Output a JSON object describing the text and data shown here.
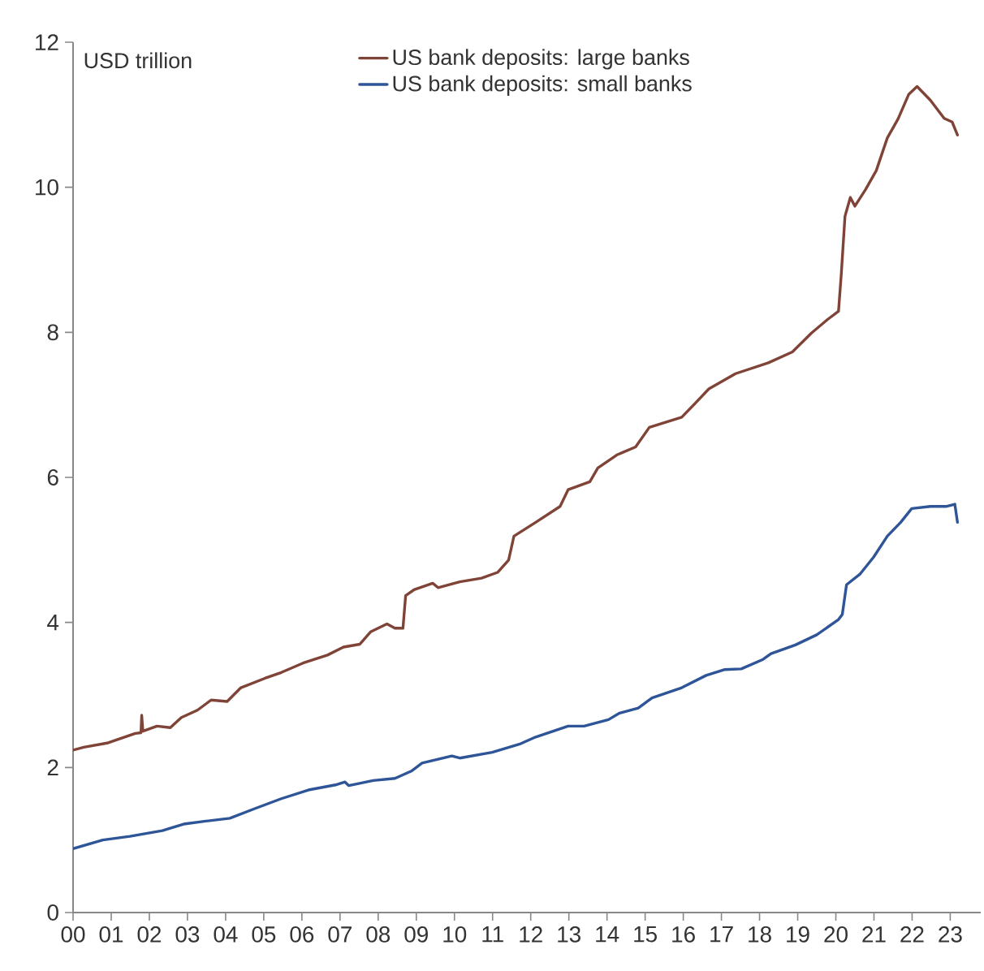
{
  "chart_data": {
    "type": "line",
    "ylabel": "USD trillion",
    "legend": "top",
    "xlim": [
      2000,
      2023.8
    ],
    "ylim": [
      0,
      12
    ],
    "xticks": [
      {
        "value": 2000,
        "label": "00"
      },
      {
        "value": 2001,
        "label": "01"
      },
      {
        "value": 2002,
        "label": "02"
      },
      {
        "value": 2003,
        "label": "03"
      },
      {
        "value": 2004,
        "label": "04"
      },
      {
        "value": 2005,
        "label": "05"
      },
      {
        "value": 2006,
        "label": "06"
      },
      {
        "value": 2007,
        "label": "07"
      },
      {
        "value": 2008,
        "label": "08"
      },
      {
        "value": 2009,
        "label": "09"
      },
      {
        "value": 2010,
        "label": "10"
      },
      {
        "value": 2011,
        "label": "11"
      },
      {
        "value": 2012,
        "label": "12"
      },
      {
        "value": 2013,
        "label": "13"
      },
      {
        "value": 2014,
        "label": "14"
      },
      {
        "value": 2015,
        "label": "15"
      },
      {
        "value": 2016,
        "label": "16"
      },
      {
        "value": 2017,
        "label": "17"
      },
      {
        "value": 2018,
        "label": "18"
      },
      {
        "value": 2019,
        "label": "19"
      },
      {
        "value": 2020,
        "label": "20"
      },
      {
        "value": 2021,
        "label": "21"
      },
      {
        "value": 2022,
        "label": "22"
      },
      {
        "value": 2023,
        "label": "23"
      }
    ],
    "yticks": [
      0,
      2,
      4,
      6,
      8,
      10,
      12
    ],
    "series": [
      {
        "name": "US bank deposits: large banks",
        "color": "#7f4437",
        "x": [
          2000,
          2000.28,
          2000.92,
          2001.63,
          2001.78,
          2001.8,
          2001.83,
          2002.2,
          2002.55,
          2002.84,
          2003.26,
          2003.62,
          2004.04,
          2004.4,
          2005.03,
          2005.46,
          2006.03,
          2006.67,
          2007.09,
          2007.52,
          2007.8,
          2008.23,
          2008.44,
          2008.65,
          2008.72,
          2008.94,
          2009.43,
          2009.57,
          2010.14,
          2010.71,
          2011.13,
          2011.42,
          2011.56,
          2012.13,
          2012.77,
          2012.98,
          2013.55,
          2013.76,
          2014.26,
          2014.75,
          2015.11,
          2015.96,
          2016.31,
          2016.67,
          2017.37,
          2018.23,
          2018.86,
          2019.36,
          2019.79,
          2020.07,
          2020.14,
          2020.24,
          2020.38,
          2020.5,
          2020.78,
          2021.06,
          2021.35,
          2021.63,
          2021.91,
          2022.13,
          2022.48,
          2022.84,
          2023.05,
          2023.19
        ],
        "values": [
          2.24,
          2.28,
          2.34,
          2.47,
          2.48,
          2.72,
          2.5,
          2.57,
          2.55,
          2.69,
          2.79,
          2.93,
          2.91,
          3.1,
          3.23,
          3.31,
          3.44,
          3.55,
          3.66,
          3.7,
          3.87,
          3.98,
          3.92,
          3.92,
          4.37,
          4.45,
          4.54,
          4.48,
          4.56,
          4.61,
          4.69,
          4.86,
          5.19,
          5.38,
          5.6,
          5.83,
          5.94,
          6.13,
          6.31,
          6.42,
          6.69,
          6.83,
          7.02,
          7.22,
          7.43,
          7.58,
          7.73,
          7.99,
          8.18,
          8.29,
          8.78,
          9.6,
          9.86,
          9.74,
          9.97,
          10.23,
          10.68,
          10.94,
          11.28,
          11.39,
          11.2,
          10.95,
          10.9,
          10.72
        ]
      },
      {
        "name": "US bank deposits: small banks",
        "color": "#2e5597",
        "x": [
          2000,
          2000.78,
          2001.49,
          2002.34,
          2002.9,
          2003.48,
          2004.11,
          2004.75,
          2005.46,
          2006.17,
          2006.88,
          2007.13,
          2007.23,
          2007.87,
          2008.44,
          2008.87,
          2009.15,
          2009.93,
          2010.14,
          2010.99,
          2011.7,
          2012.13,
          2012.98,
          2013.4,
          2014.04,
          2014.33,
          2014.82,
          2015.18,
          2015.96,
          2016.6,
          2017.09,
          2017.52,
          2018.09,
          2018.3,
          2018.94,
          2019.5,
          2020.07,
          2020.17,
          2020.28,
          2020.64,
          2020.99,
          2021.35,
          2021.7,
          2021.99,
          2022.48,
          2022.91,
          2023.12,
          2023.19
        ],
        "values": [
          0.88,
          1.0,
          1.05,
          1.13,
          1.22,
          1.26,
          1.3,
          1.43,
          1.57,
          1.69,
          1.76,
          1.8,
          1.75,
          1.82,
          1.85,
          1.95,
          2.06,
          2.16,
          2.13,
          2.21,
          2.32,
          2.42,
          2.57,
          2.57,
          2.66,
          2.75,
          2.82,
          2.96,
          3.1,
          3.27,
          3.35,
          3.36,
          3.49,
          3.57,
          3.69,
          3.83,
          4.04,
          4.11,
          4.52,
          4.67,
          4.9,
          5.19,
          5.38,
          5.57,
          5.6,
          5.6,
          5.63,
          5.38
        ]
      }
    ]
  }
}
